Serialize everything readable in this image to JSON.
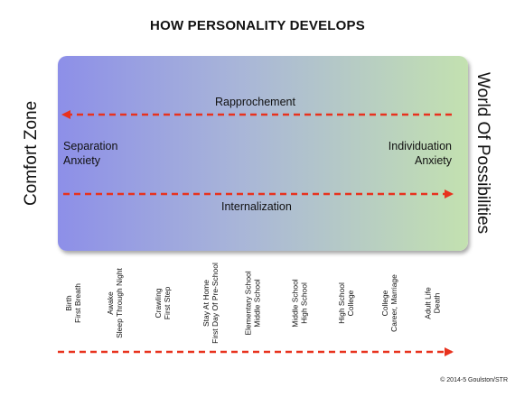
{
  "title": "HOW PERSONALITY DEVELOPS",
  "side_labels": {
    "left": "Comfort Zone",
    "right": "World Of Possibilities"
  },
  "panel": {
    "rapprochement": "Rapprochement",
    "internalization": "Internalization",
    "separation_line1": "Separation",
    "separation_line2": "Anxiety",
    "individuation_line1": "Individuation",
    "individuation_line2": "Anxiety",
    "gradient_left": "#8d8fe8",
    "gradient_right": "#c3e1b0"
  },
  "arrow_color": "#e8321e",
  "stages": [
    {
      "line1": "Birth",
      "line2": "First Breath"
    },
    {
      "line1": "Awake",
      "line2": "Sleep Through Night"
    },
    {
      "line1": "Crawling",
      "line2": "First Step"
    },
    {
      "line1": "Stay At Home",
      "line2": "First Day Of Pre-School"
    },
    {
      "line1": "Elementary School",
      "line2": "Middle School"
    },
    {
      "line1": "Middle School",
      "line2": "High School"
    },
    {
      "line1": "High School",
      "line2": "College"
    },
    {
      "line1": "College",
      "line2": "Career, Marriage"
    },
    {
      "line1": "Adult Life",
      "line2": "Death"
    }
  ],
  "copyright": "© 2014-5 Goulston/STR"
}
